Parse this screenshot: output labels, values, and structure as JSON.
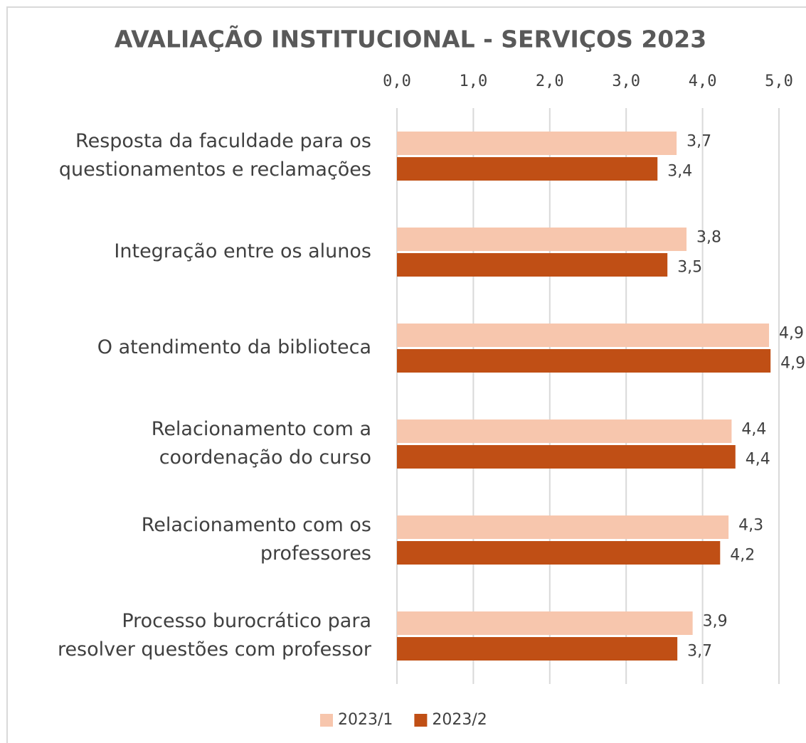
{
  "chart_data": {
    "type": "barh",
    "title": "AVALIAÇÃO INSTITUCIONAL - SERVIÇOS 2023",
    "categories": [
      [
        "Resposta da faculdade para os",
        "questionamentos e reclamações"
      ],
      [
        "Integração entre os alunos"
      ],
      [
        "O atendimento da biblioteca"
      ],
      [
        "Relacionamento com a",
        "coordenação do curso"
      ],
      [
        "Relacionamento com os",
        "professores"
      ],
      [
        "Processo burocrático para",
        "resolver questões com professor"
      ]
    ],
    "series": [
      {
        "name": "2023/1",
        "color": "#f7c6ad",
        "values": [
          3.66,
          3.79,
          4.87,
          4.38,
          4.34,
          3.87
        ],
        "value_labels": [
          "3,7",
          "3,8",
          "4,9",
          "4,4",
          "4,3",
          "3,9"
        ]
      },
      {
        "name": "2023/2",
        "color": "#c04f15",
        "values": [
          3.41,
          3.54,
          4.89,
          4.43,
          4.23,
          3.67
        ],
        "value_labels": [
          "3,4",
          "3,5",
          "4,9",
          "4,4",
          "4,2",
          "3,7"
        ]
      }
    ],
    "xlim": [
      0,
      5
    ],
    "xticks": [
      {
        "value": 0,
        "label": "0,0"
      },
      {
        "value": 1,
        "label": "1,0"
      },
      {
        "value": 2,
        "label": "2,0"
      },
      {
        "value": 3,
        "label": "3,0"
      },
      {
        "value": 4,
        "label": "4,0"
      },
      {
        "value": 5,
        "label": "5,0"
      }
    ],
    "grid": true,
    "legend": "bottom"
  }
}
